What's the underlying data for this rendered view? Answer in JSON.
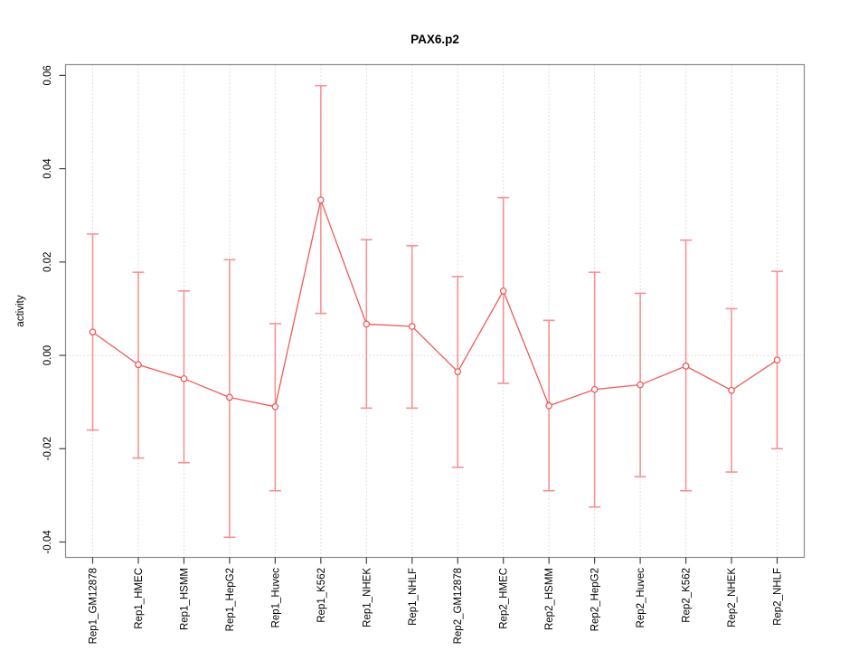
{
  "chart_data": {
    "type": "scatter",
    "title": "PAX6.p2",
    "xlabel": "",
    "ylabel": "activity",
    "legend": "none",
    "grid": {
      "vertical": "dotted line at every category",
      "horizontal": "dotted line at y = 0 only"
    },
    "categories": [
      "Rep1_GM12878",
      "Rep1_HMEC",
      "Rep1_HSMM",
      "Rep1_HepG2",
      "Rep1_Huvec",
      "Rep1_K562",
      "Rep1_NHEK",
      "Rep1_NHLF",
      "Rep2_GM12878",
      "Rep2_HMEC",
      "Rep2_HSMM",
      "Rep2_HepG2",
      "Rep2_Huvec",
      "Rep2_K562",
      "Rep2_NHEK",
      "Rep2_NHLF"
    ],
    "series": [
      {
        "name": "activity",
        "marker": "open-circle",
        "means": [
          0.005,
          -0.002,
          -0.005,
          -0.009,
          -0.011,
          0.0333,
          0.0067,
          0.0062,
          -0.0035,
          0.0138,
          -0.0108,
          -0.0073,
          -0.0063,
          -0.0023,
          -0.0075,
          -0.001
        ],
        "err_low": [
          -0.016,
          -0.022,
          -0.023,
          -0.039,
          -0.029,
          0.009,
          -0.0113,
          -0.0113,
          -0.024,
          -0.006,
          -0.029,
          -0.0325,
          -0.026,
          -0.029,
          -0.025,
          -0.02
        ],
        "err_high": [
          0.026,
          0.0178,
          0.0138,
          0.0205,
          0.0068,
          0.0578,
          0.0248,
          0.0235,
          0.0169,
          0.0338,
          0.0075,
          0.0178,
          0.0133,
          0.0247,
          0.01,
          0.018
        ]
      }
    ],
    "yticks": [
      -0.04,
      -0.02,
      0,
      0.02,
      0.04,
      0.06
    ],
    "ytick_labels": [
      "-0.04",
      "-0.02",
      "0.00",
      "0.02",
      "0.04",
      "0.06"
    ],
    "ylim": [
      -0.0433,
      0.0623
    ],
    "colors": {
      "line": "#ee5a5a",
      "point": "#ee5a5a",
      "error_bar": "#f69292",
      "grid": "#d6d6d6",
      "frame": "#8a8a8a",
      "tick": "#404040",
      "text": "#000000"
    }
  }
}
